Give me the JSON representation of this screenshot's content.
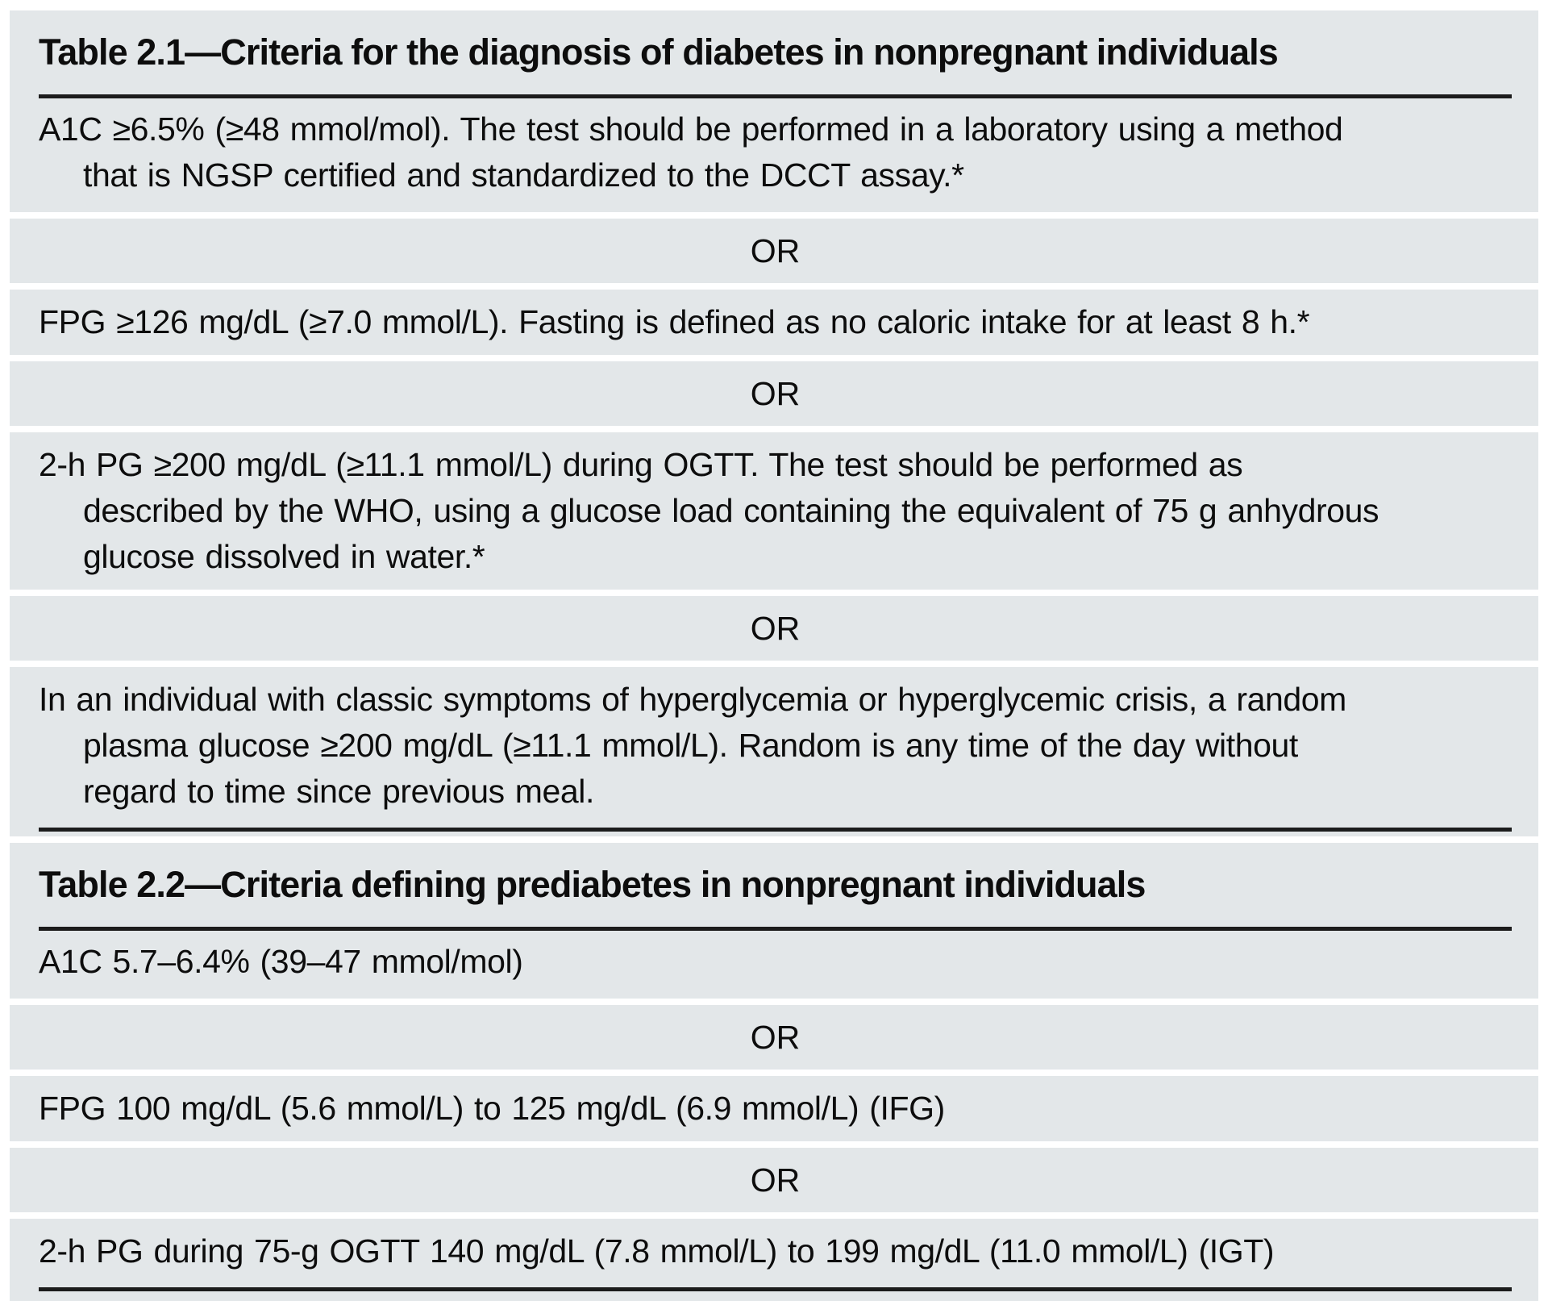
{
  "page": {
    "background": "#ffffff",
    "block_background": "#e3e7e9",
    "rule_color": "#1c1c1c",
    "text_color": "#0d0d0d",
    "or_label": "OR"
  },
  "tables": [
    {
      "name": "table-2-1",
      "title": "Table 2.1—Criteria for the diagnosis of diabetes in nonpregnant individuals",
      "criteria": [
        {
          "lines": [
            "A1C ≥6.5% (≥48 mmol/mol). The test should be performed in a laboratory using a method",
            "that is NGSP certified and standardized to the DCCT assay.*"
          ]
        },
        {
          "lines": [
            "FPG ≥126 mg/dL (≥7.0 mmol/L). Fasting is defined as no caloric intake for at least 8 h.*"
          ]
        },
        {
          "lines": [
            "2-h PG ≥200 mg/dL (≥11.1 mmol/L) during OGTT. The test should be performed as",
            "described by the WHO, using a glucose load containing the equivalent of 75 g anhydrous",
            "glucose dissolved in water.*"
          ]
        },
        {
          "lines": [
            "In an individual with classic symptoms of hyperglycemia or hyperglycemic crisis, a random",
            "plasma glucose ≥200 mg/dL (≥11.1 mmol/L). Random is any time of the day without",
            "regard to time since previous meal."
          ]
        }
      ]
    },
    {
      "name": "table-2-2",
      "title": "Table 2.2—Criteria defining prediabetes in nonpregnant individuals",
      "criteria": [
        {
          "lines": [
            "A1C 5.7–6.4% (39–47 mmol/mol)"
          ]
        },
        {
          "lines": [
            "FPG 100 mg/dL (5.6 mmol/L) to 125 mg/dL (6.9 mmol/L) (IFG)"
          ]
        },
        {
          "lines": [
            "2-h PG during 75-g OGTT 140 mg/dL (7.8 mmol/L) to 199 mg/dL (11.0 mmol/L) (IGT)"
          ]
        }
      ]
    }
  ]
}
